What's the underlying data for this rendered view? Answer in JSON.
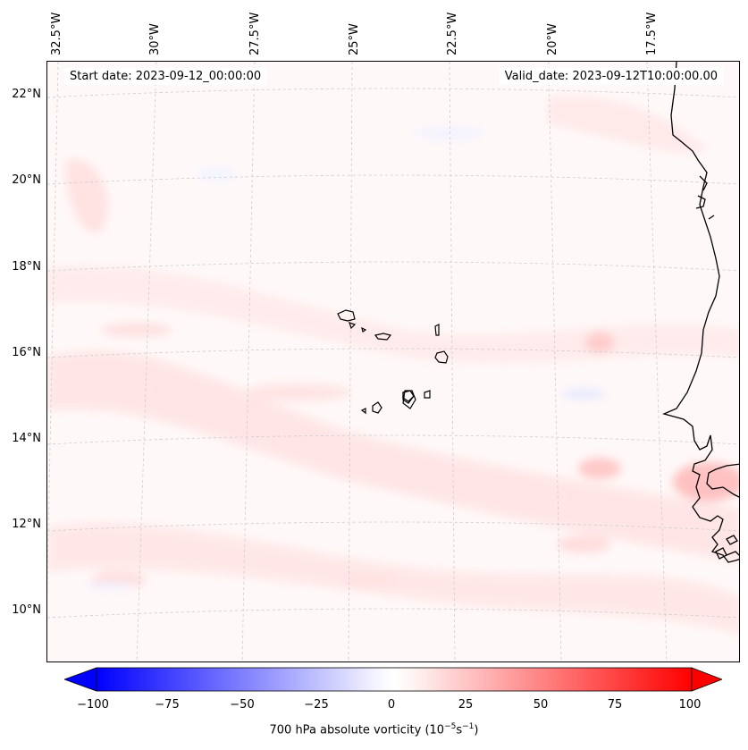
{
  "header": {
    "start_date": "Start date: 2023-09-12_00:00:00",
    "valid_date": "Valid_date: 2023-09-12T10:00:00.00"
  },
  "longitude_labels": [
    "32.5°W",
    "30°W",
    "27.5°W",
    "25°W",
    "22.5°W",
    "20°W",
    "17.5°W"
  ],
  "latitude_labels": [
    "22°N",
    "20°N",
    "18°N",
    "16°N",
    "14°N",
    "12°N",
    "10°N"
  ],
  "colorbar": {
    "ticks": [
      "−100",
      "−75",
      "−50",
      "−25",
      "0",
      "25",
      "50",
      "75",
      "100"
    ],
    "label_main": "700 hPa absolute vorticity (10",
    "label_exp1": "−5",
    "label_mid": "s",
    "label_exp2": "−1",
    "label_end": ")",
    "min": -100,
    "max": 100,
    "low_color": "#0000ff",
    "mid_color": "#ffffff",
    "high_color": "#ff0000"
  },
  "map": {
    "background_color": "#fff8f8",
    "coastline_color": "#000000",
    "gridline_color": "#cccccc"
  }
}
